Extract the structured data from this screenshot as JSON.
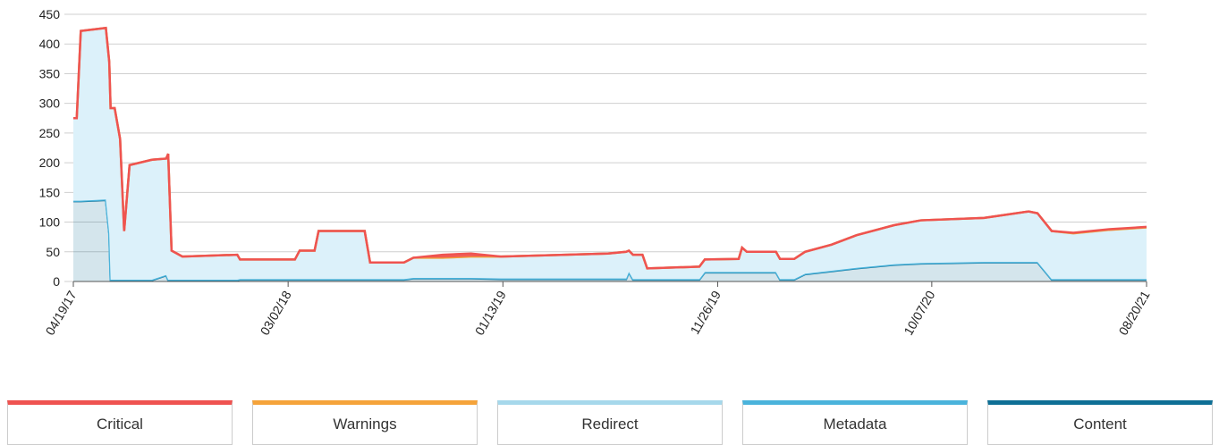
{
  "chart_data": {
    "type": "stacked_area",
    "x": [
      "04/19/17",
      "04/24/17",
      "04/30/17",
      "06/06/17",
      "06/11/17",
      "06/13/17",
      "06/19/17",
      "06/27/17",
      "07/03/17",
      "07/11/17",
      "08/13/17",
      "09/03/17",
      "09/06/17",
      "09/11/17",
      "09/27/17",
      "12/17/17",
      "12/21/17",
      "03/12/18",
      "03/19/18",
      "04/10/18",
      "04/16/18",
      "06/23/18",
      "07/01/18",
      "08/20/18",
      "09/03/18",
      "10/16/18",
      "11/27/18",
      "01/10/19",
      "06/17/19",
      "07/14/19",
      "07/18/19",
      "07/24/19",
      "08/07/19",
      "08/14/19",
      "10/30/19",
      "11/07/19",
      "12/27/19",
      "01/01/20",
      "01/08/20",
      "02/20/20",
      "02/26/20",
      "03/18/20",
      "04/03/20",
      "05/12/20",
      "06/18/20",
      "08/13/20",
      "09/21/20",
      "12/23/20",
      "02/27/21",
      "03/12/21",
      "04/02/21",
      "05/04/21",
      "06/26/21",
      "08/20/21"
    ],
    "series": [
      {
        "name": "Critical",
        "color": "#ef5350",
        "values": [
          0,
          0,
          0,
          0,
          0,
          0,
          0,
          0,
          0,
          0,
          0,
          0,
          0,
          0,
          0,
          0,
          0,
          0,
          0,
          0,
          0,
          0,
          0,
          0,
          0,
          5,
          5,
          0,
          0,
          0,
          0,
          0,
          0,
          0,
          0,
          0,
          0,
          0,
          0,
          0,
          0,
          0,
          0,
          0,
          0,
          0,
          0,
          0,
          0,
          0,
          0,
          1,
          1,
          1
        ]
      },
      {
        "name": "Warnings",
        "color": "#f5a33a",
        "values": [
          0,
          0,
          0,
          0,
          0,
          0,
          0,
          0,
          0,
          0,
          0,
          0,
          0,
          0,
          0,
          0,
          0,
          0,
          0,
          0,
          0,
          0,
          0,
          0,
          0,
          0,
          0,
          0,
          0,
          0,
          0,
          0,
          0,
          0,
          0,
          0,
          0,
          0,
          0,
          0,
          0,
          0,
          0,
          0,
          0,
          0,
          0,
          0,
          0,
          0,
          0,
          0,
          0,
          0
        ]
      },
      {
        "name": "Redirect",
        "color": "#a6d8eb",
        "values": [
          139,
          139,
          286,
          289,
          289,
          289,
          289,
          237,
          82,
          193,
          202,
          196,
          212,
          49,
          39,
          42,
          33,
          33,
          48,
          48,
          81,
          81,
          28,
          28,
          34,
          34,
          36,
          37,
          42,
          45,
          36,
          41,
          41,
          18,
          21,
          21,
          22,
          41,
          34,
          34,
          34,
          34,
          37,
          44,
          55,
          66,
          72,
          74,
          85,
          82,
          81,
          77,
          83,
          87
        ]
      },
      {
        "name": "Metadata",
        "color": "#4ab3db",
        "values": [
          1,
          1,
          1,
          1,
          1,
          1,
          1,
          1,
          1,
          1,
          1,
          1,
          1,
          1,
          1,
          1,
          1,
          1,
          1,
          1,
          1,
          1,
          1,
          1,
          1,
          1,
          1,
          1,
          1,
          1,
          1,
          1,
          1,
          1,
          1,
          1,
          1,
          1,
          1,
          1,
          1,
          1,
          1,
          1,
          1,
          1,
          1,
          1,
          1,
          1,
          1,
          1,
          1,
          1
        ]
      },
      {
        "name": "Content",
        "color": "#0e6f95",
        "values": [
          135,
          135,
          135,
          137,
          80,
          2,
          2,
          2,
          2,
          2,
          2,
          10,
          2,
          2,
          2,
          2,
          3,
          3,
          3,
          3,
          3,
          3,
          3,
          3,
          5,
          5,
          5,
          4,
          4,
          4,
          15,
          3,
          3,
          3,
          3,
          15,
          15,
          15,
          15,
          15,
          3,
          3,
          12,
          17,
          22,
          28,
          30,
          32,
          32,
          32,
          3,
          3,
          3,
          3
        ]
      }
    ],
    "xlim": [
      "04/19/17",
      "08/20/21"
    ],
    "xticks": [
      "04/19/17",
      "03/02/18",
      "01/13/19",
      "11/26/19",
      "10/07/20",
      "08/20/21"
    ],
    "ylim": [
      0,
      450
    ],
    "yticks": [
      0,
      50,
      100,
      150,
      200,
      250,
      300,
      350,
      400,
      450
    ],
    "grid": true
  }
}
